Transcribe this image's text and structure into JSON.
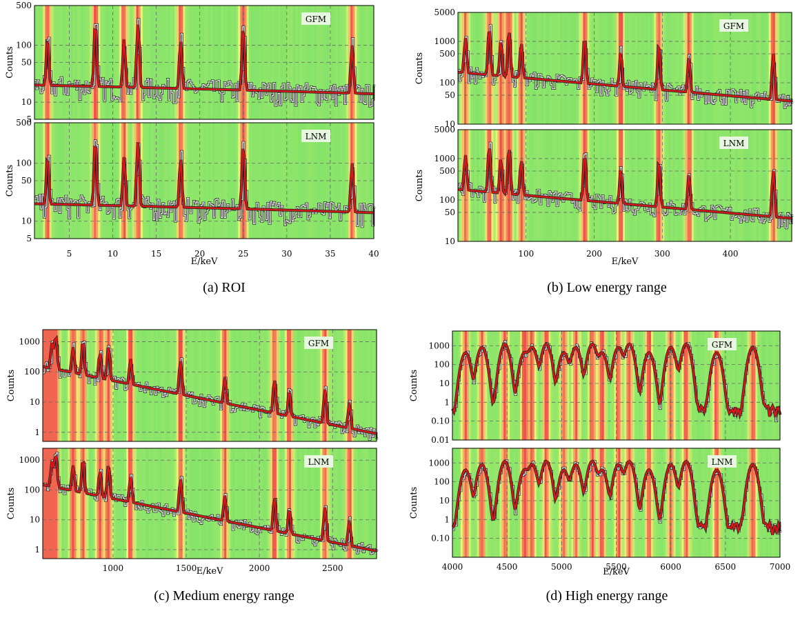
{
  "panels": [
    {
      "id": "a",
      "caption": "(a) ROI",
      "xlabel": "E/keV",
      "ylabel": "Counts",
      "xlim": [
        1,
        40
      ],
      "xticks": [
        5,
        10,
        15,
        20,
        25,
        30,
        35,
        40
      ],
      "ylim": [
        5,
        500
      ],
      "yticks": [
        "5",
        "10",
        "50",
        "100",
        "500"
      ],
      "subplots": [
        "GFM",
        "LNM"
      ]
    },
    {
      "id": "b",
      "caption": "(b) Low energy range",
      "xlabel": "E/keV",
      "ylabel": "Counts",
      "xlim": [
        0,
        490
      ],
      "xticks": [
        100,
        200,
        300,
        400
      ],
      "ylim": [
        10,
        5000
      ],
      "yticks": [
        "10",
        "50",
        "100",
        "500",
        "1000",
        "5000"
      ],
      "subplots": [
        "GFM",
        "LNM"
      ]
    },
    {
      "id": "c",
      "caption": "(c) Medium energy range",
      "xlabel": "E/keV",
      "ylabel": "Counts",
      "xlim": [
        520,
        2800
      ],
      "xticks": [
        1000,
        1500,
        2000,
        2500
      ],
      "ylim": [
        0.5,
        2500
      ],
      "yticks": [
        "1",
        "10",
        "100",
        "1000"
      ],
      "subplots": [
        "GFM",
        "LNM"
      ]
    },
    {
      "id": "d",
      "caption": "(d) High energy range",
      "xlabel": "E/keV",
      "ylabel": "Counts",
      "xlim": [
        4000,
        7000
      ],
      "xticks": [
        4000,
        4500,
        5000,
        5500,
        6000,
        6500,
        7000
      ],
      "ylim": [
        0.01,
        6000
      ],
      "yticks_top": [
        "0.01",
        "0.10",
        "1",
        "10",
        "100",
        "1000"
      ],
      "yticks": [
        "0.10",
        "1",
        "10",
        "100",
        "1000"
      ],
      "subplots": [
        "GFM",
        "LNM"
      ]
    }
  ],
  "chart_data": [
    {
      "type": "line",
      "title": "(a) ROI",
      "xlabel": "E/keV",
      "ylabel": "Counts",
      "scale_y": "log",
      "series": [
        {
          "name": "GFM"
        },
        {
          "name": "LNM"
        }
      ],
      "peaks_keV": [
        2.5,
        8.0,
        11.3,
        12.9,
        17.8,
        25.0,
        37.5
      ],
      "x_range": [
        1,
        40
      ],
      "y_range": [
        5,
        500
      ]
    },
    {
      "type": "line",
      "title": "(b) Low energy range",
      "xlabel": "E/keV",
      "ylabel": "Counts",
      "scale_y": "log",
      "series": [
        {
          "name": "GFM"
        },
        {
          "name": "LNM"
        }
      ],
      "peaks_keV": [
        11,
        46,
        63,
        75,
        93,
        186,
        239,
        295,
        339,
        463
      ],
      "x_range": [
        0,
        490
      ],
      "y_range": [
        10,
        5000
      ]
    },
    {
      "type": "line",
      "title": "(c) Medium energy range",
      "xlabel": "E/keV",
      "ylabel": "Counts",
      "scale_y": "log",
      "series": [
        {
          "name": "GFM"
        },
        {
          "name": "LNM"
        }
      ],
      "peaks_keV": [
        583,
        609,
        727,
        795,
        911,
        969,
        1120,
        1461,
        1764,
        2103,
        2204,
        2448,
        2614
      ],
      "x_range": [
        520,
        2800
      ],
      "y_range": [
        0.5,
        2500
      ]
    },
    {
      "type": "line",
      "title": "(d) High energy range",
      "xlabel": "E/keV",
      "ylabel": "Counts",
      "scale_y": "log",
      "series": [
        {
          "name": "GFM"
        },
        {
          "name": "LNM"
        }
      ],
      "peaks_keV": [
        4120,
        4270,
        4480,
        4660,
        4730,
        4860,
        5020,
        5130,
        5280,
        5370,
        5520,
        5620,
        5800,
        6000,
        6140,
        6420,
        6750
      ],
      "x_range": [
        4000,
        7000
      ],
      "y_range": [
        0.01,
        6000
      ]
    }
  ]
}
